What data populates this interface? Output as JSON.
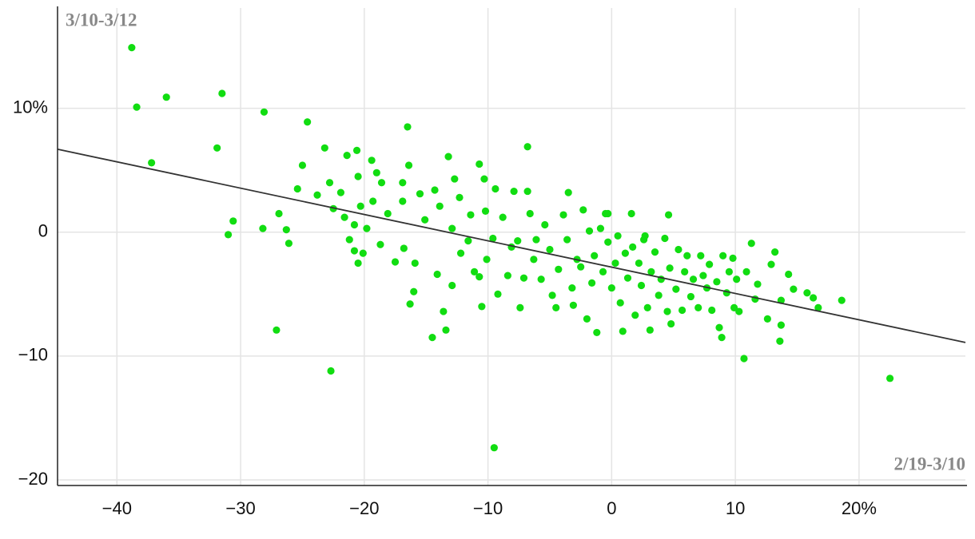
{
  "chart_data": {
    "type": "scatter",
    "ylabel": "3/10-3/12",
    "xlabel": "2/19-3/10",
    "color": "#11dd11",
    "grid": true,
    "xlim": [
      -44.8,
      28.6
    ],
    "ylim": [
      -20.45,
      18.1
    ],
    "xticks": [
      {
        "value": -40,
        "label": "−40"
      },
      {
        "value": -30,
        "label": "−30"
      },
      {
        "value": -20,
        "label": "−20"
      },
      {
        "value": -10,
        "label": "−10"
      },
      0,
      10,
      {
        "value": 20,
        "label": "20%"
      }
    ],
    "yticks": [
      {
        "value": 10,
        "label": "10%"
      },
      0,
      {
        "value": -10,
        "label": "−10"
      },
      {
        "value": -20,
        "label": "−20"
      }
    ],
    "trend": {
      "x": [
        -44.8,
        28.6
      ],
      "values": [
        6.7,
        -8.9
      ],
      "color": "#333333"
    },
    "x": [
      -38.8,
      -38.4,
      -36.0,
      -37.2,
      -31.5,
      -31.9,
      -28.1,
      -30.6,
      -31.0,
      -28.2,
      -26.9,
      -26.3,
      -26.1,
      -27.1,
      -24.6,
      -25.0,
      -25.4,
      -23.2,
      -23.8,
      -22.7,
      -22.8,
      -22.5,
      -21.9,
      -21.4,
      -20.6,
      -20.5,
      -21.6,
      -20.8,
      -21.2,
      -20.8,
      -20.5,
      -20.1,
      -19.8,
      -20.3,
      -19.4,
      -19.0,
      -19.3,
      -18.6,
      -18.1,
      -18.7,
      -17.5,
      -16.9,
      -16.5,
      -16.4,
      -16.9,
      -16.8,
      -16.3,
      -16.0,
      -15.9,
      -15.5,
      -15.1,
      -14.5,
      -14.3,
      -14.1,
      -13.9,
      -13.6,
      -13.4,
      -13.2,
      -12.9,
      -12.9,
      -12.7,
      -12.3,
      -12.2,
      -11.6,
      -11.4,
      -11.1,
      -10.7,
      -10.7,
      -10.5,
      -10.3,
      -10.2,
      -10.1,
      -9.6,
      -9.5,
      -9.4,
      -9.2,
      -8.8,
      -8.4,
      -8.1,
      -7.9,
      -7.6,
      -7.4,
      -7.1,
      -6.8,
      -6.8,
      -6.6,
      -6.3,
      -6.1,
      -5.7,
      -5.4,
      -5.0,
      -4.8,
      -4.5,
      -4.3,
      -3.9,
      -3.6,
      -3.5,
      -3.2,
      -3.1,
      -2.8,
      -2.5,
      -2.3,
      -2.0,
      -1.8,
      -1.6,
      -1.4,
      -1.2,
      -0.9,
      -0.7,
      -0.5,
      -0.3,
      0,
      0.3,
      0.5,
      0.7,
      0.9,
      1.1,
      1.3,
      1.6,
      1.7,
      1.9,
      2.2,
      2.4,
      2.6,
      2.9,
      3.1,
      3.2,
      3.5,
      3.8,
      4.0,
      4.3,
      4.5,
      4.7,
      4.8,
      5.2,
      5.4,
      5.7,
      5.9,
      6.1,
      6.4,
      6.6,
      7.0,
      7.2,
      7.4,
      7.7,
      7.9,
      8.1,
      8.5,
      8.7,
      8.9,
      9.0,
      9.3,
      9.5,
      9.8,
      9.9,
      10.1,
      10.3,
      10.7,
      10.9,
      11.3,
      11.6,
      11.8,
      12.6,
      12.9,
      13.2,
      13.6,
      13.7,
      13.7,
      14.3,
      14.7,
      15.8,
      16.3,
      16.7,
      18.6,
      22.5,
      4.6,
      -0.3,
      2.7
    ],
    "values": [
      14.9,
      10.1,
      10.9,
      5.6,
      11.2,
      6.8,
      9.7,
      0.9,
      -0.2,
      0.3,
      1.5,
      0.2,
      -0.9,
      -7.9,
      8.9,
      5.4,
      3.5,
      6.8,
      3.0,
      -11.2,
      4.0,
      1.9,
      3.2,
      6.2,
      6.6,
      4.5,
      1.2,
      0.6,
      -0.6,
      -1.5,
      -2.5,
      -1.7,
      0.3,
      2.1,
      5.8,
      4.8,
      2.5,
      4.0,
      1.5,
      -1.0,
      -2.4,
      4.0,
      8.5,
      5.4,
      2.5,
      -1.3,
      -5.8,
      -4.8,
      -2.5,
      3.1,
      1.0,
      -8.5,
      3.4,
      -3.4,
      2.1,
      -6.4,
      -7.9,
      6.1,
      0.3,
      -4.3,
      4.3,
      2.8,
      -1.7,
      -0.7,
      1.4,
      -3.2,
      -3.6,
      5.5,
      -6.0,
      4.3,
      1.7,
      -2.2,
      -0.5,
      -17.4,
      3.5,
      -5.0,
      1.2,
      -3.5,
      -1.2,
      3.3,
      -0.7,
      -6.1,
      -3.7,
      6.9,
      3.3,
      1.5,
      -2.2,
      -0.6,
      -3.8,
      0.6,
      -1.4,
      -5.1,
      -6.1,
      -3.0,
      1.4,
      -0.6,
      3.2,
      -4.5,
      -5.9,
      -2.2,
      -2.8,
      1.8,
      -7.0,
      0.1,
      -4.1,
      -1.9,
      -8.1,
      0.3,
      -3.2,
      1.5,
      -0.8,
      -4.5,
      -2.5,
      -0.3,
      -5.7,
      -8.0,
      -1.7,
      -3.7,
      1.5,
      -1.2,
      -6.7,
      -2.5,
      -4.3,
      -0.6,
      -6.1,
      -7.9,
      -3.2,
      -1.6,
      -5.1,
      -3.8,
      -0.5,
      -6.4,
      -2.9,
      -7.4,
      -4.6,
      -1.4,
      -6.3,
      -3.2,
      -1.9,
      -5.2,
      -3.8,
      -6.1,
      -1.9,
      -3.5,
      -4.5,
      -2.6,
      -6.3,
      -4.0,
      -7.7,
      -8.5,
      -1.9,
      -4.9,
      -3.2,
      -2.1,
      -6.1,
      -3.8,
      -6.4,
      -10.2,
      -3.2,
      -0.9,
      -5.4,
      -4.2,
      -7.0,
      -2.6,
      -1.6,
      -8.8,
      -7.5,
      -5.5,
      -3.4,
      -4.6,
      -4.9,
      -5.3,
      -6.1,
      -5.5,
      -11.8,
      1.4,
      1.5,
      -0.3
    ]
  }
}
